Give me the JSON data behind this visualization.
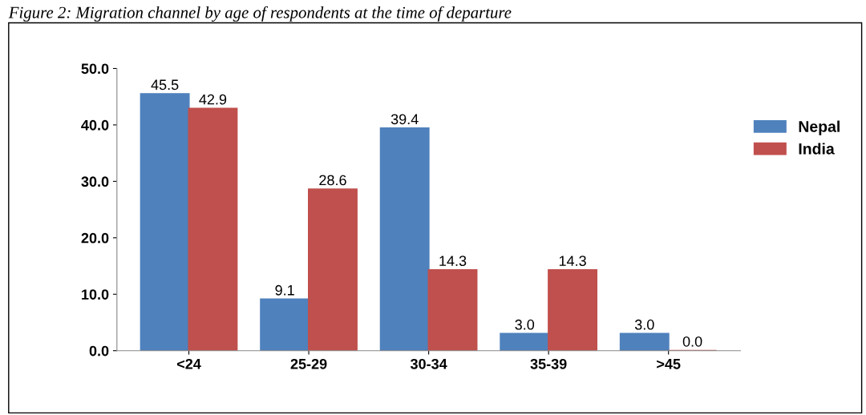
{
  "chart_data": {
    "type": "bar",
    "title": "Figure 2: Migration channel by age of respondents at the time of departure",
    "categories": [
      "<24",
      "25-29",
      "30-34",
      "35-39",
      ">45"
    ],
    "series": [
      {
        "name": "Nepal",
        "color": "#4f81bd",
        "values": [
          45.5,
          9.1,
          39.4,
          3.0,
          3.0
        ],
        "value_labels": [
          "45.5",
          "9.1",
          "39.4",
          "3.0",
          "3.0"
        ]
      },
      {
        "name": "India",
        "color": "#c0504d",
        "values": [
          42.9,
          28.6,
          14.3,
          14.3,
          0.0
        ],
        "value_labels": [
          "42.9",
          "28.6",
          "14.3",
          "14.3",
          "0.0"
        ]
      }
    ],
    "ylim": [
      0,
      50
    ],
    "yticks": [
      {
        "value": 0,
        "label": "0.0"
      },
      {
        "value": 10,
        "label": "10.0"
      },
      {
        "value": 20,
        "label": "20.0"
      },
      {
        "value": 30,
        "label": "30.0"
      },
      {
        "value": 40,
        "label": "40.0"
      },
      {
        "value": 50,
        "label": "50.0"
      }
    ],
    "grid": false,
    "legend": "right"
  }
}
